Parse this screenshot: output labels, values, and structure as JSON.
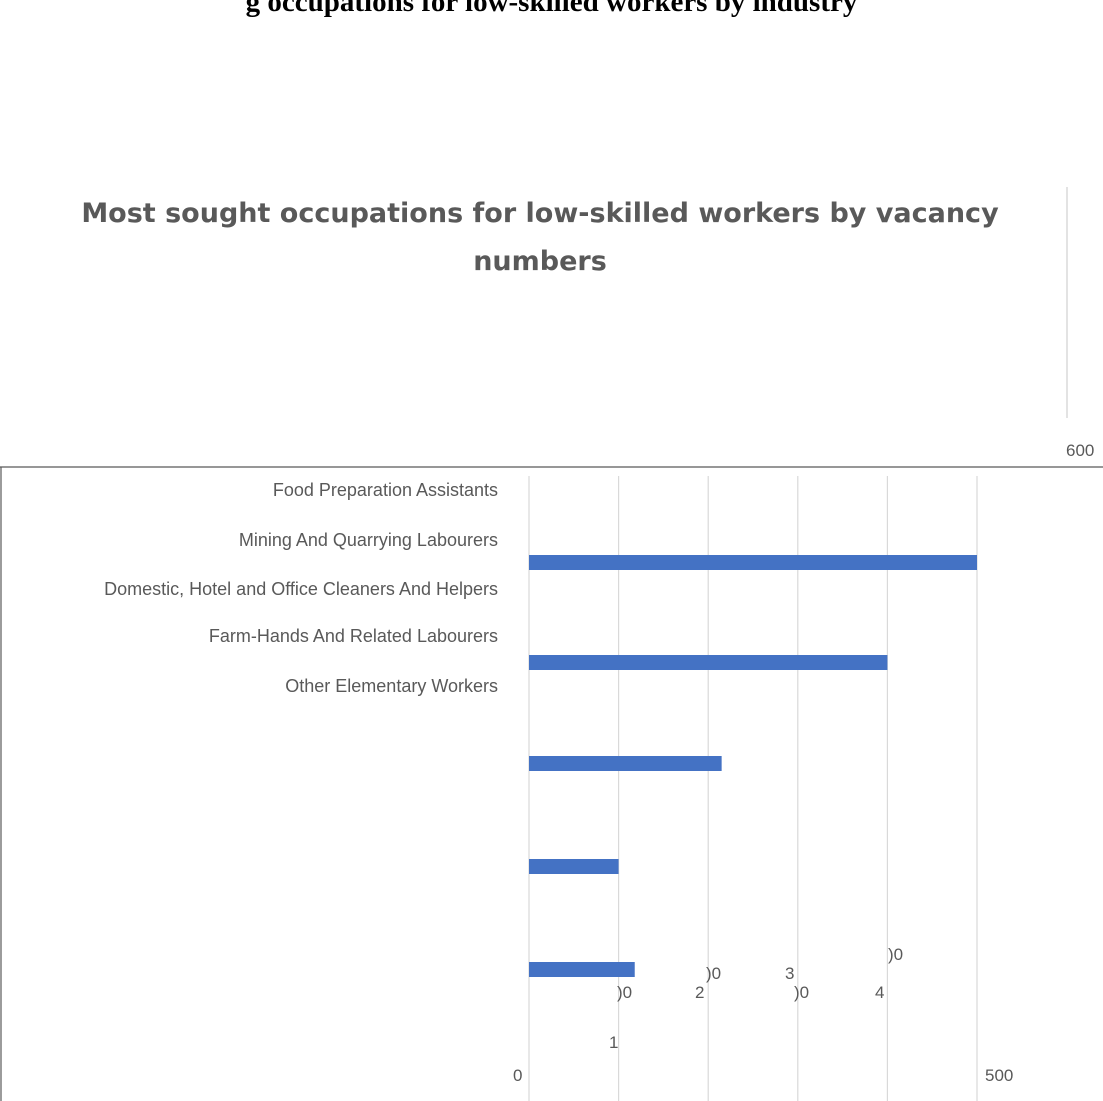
{
  "page_heading": "g occupations for low-skilled workers by industry",
  "chart_data": {
    "type": "bar",
    "orientation": "horizontal",
    "title": "Most sought occupations for low-skilled workers by vacancy numbers",
    "categories": [
      "Food Preparation Assistants",
      "Mining And Quarrying Labourers",
      "Domestic, Hotel and Office Cleaners And Helpers",
      "Farm-Hands And Related Labourers",
      "Other Elementary Workers"
    ],
    "values": [
      500,
      400,
      215,
      100,
      118
    ],
    "xlim": [
      0,
      500
    ],
    "grid": true,
    "tick_labels": [
      "600",
      ")0",
      ")0",
      "3",
      ")0",
      "2",
      ")0",
      "4",
      "1",
      "0",
      "500"
    ],
    "bar_color": "#4472c4"
  }
}
